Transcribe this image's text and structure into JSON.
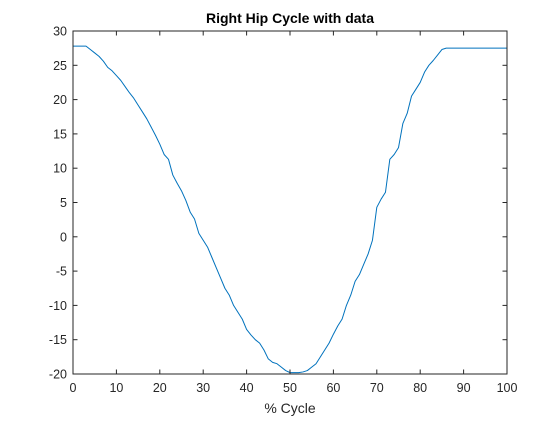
{
  "colors": {
    "series": "#0072BD",
    "axis": "#262626",
    "background": "#ffffff"
  },
  "chart_data": {
    "type": "line",
    "title": "Right Hip Cycle with data",
    "xlabel": "% Cycle",
    "ylabel": "",
    "xlim": [
      0,
      100
    ],
    "ylim": [
      -20,
      30
    ],
    "xticks": [
      0,
      10,
      20,
      30,
      40,
      50,
      60,
      70,
      80,
      90,
      100
    ],
    "yticks": [
      -20,
      -15,
      -10,
      -5,
      0,
      5,
      10,
      15,
      20,
      25,
      30
    ],
    "xtick_labels": [
      "0",
      "10",
      "20",
      "30",
      "40",
      "50",
      "60",
      "70",
      "80",
      "90",
      "100"
    ],
    "ytick_labels": [
      "-20",
      "-15",
      "-10",
      "-5",
      "0",
      "5",
      "10",
      "15",
      "20",
      "25",
      "30"
    ],
    "grid": false,
    "box": true,
    "series": [
      {
        "x": [
          0,
          1,
          2,
          3,
          4,
          5,
          6,
          7,
          8,
          9,
          10,
          11,
          12,
          13,
          14,
          15,
          16,
          17,
          18,
          19,
          20,
          21,
          22,
          23,
          24,
          25,
          26,
          27,
          28,
          29,
          30,
          31,
          32,
          33,
          34,
          35,
          36,
          37,
          38,
          39,
          40,
          41,
          42,
          43,
          44,
          45,
          46,
          47,
          48,
          49,
          50,
          51,
          52,
          53,
          54,
          55,
          56,
          57,
          58,
          59,
          60,
          61,
          62,
          63,
          64,
          65,
          66,
          67,
          68,
          69,
          70,
          71,
          72,
          73,
          74,
          75,
          76,
          77,
          78,
          79,
          80,
          81,
          82,
          83,
          84,
          85,
          86,
          87,
          88,
          89,
          90,
          91,
          92,
          93,
          94,
          95,
          96,
          97,
          98,
          99,
          100
        ],
        "y": [
          27.8,
          27.8,
          27.8,
          27.8,
          27.3,
          26.8,
          26.3,
          25.6,
          24.7,
          24.2,
          23.5,
          22.8,
          21.9,
          21.0,
          20.2,
          19.2,
          18.2,
          17.2,
          16.0,
          14.8,
          13.5,
          12.0,
          11.3,
          9.0,
          7.8,
          6.7,
          5.3,
          3.6,
          2.6,
          0.5,
          -0.5,
          -1.5,
          -3.0,
          -4.5,
          -6.0,
          -7.5,
          -8.5,
          -10.0,
          -11.0,
          -12.0,
          -13.5,
          -14.3,
          -15.0,
          -15.5,
          -16.5,
          -17.8,
          -18.3,
          -18.5,
          -19.0,
          -19.5,
          -19.8,
          -19.8,
          -19.8,
          -19.7,
          -19.5,
          -19.0,
          -18.5,
          -17.5,
          -16.5,
          -15.5,
          -14.2,
          -13.0,
          -12.0,
          -10.0,
          -8.5,
          -6.5,
          -5.5,
          -4.0,
          -2.5,
          -0.5,
          4.3,
          5.5,
          6.5,
          11.3,
          12.0,
          13.0,
          16.5,
          18.0,
          20.5,
          21.5,
          22.5,
          24.0,
          25.0,
          25.7,
          26.5,
          27.3,
          27.5,
          27.5,
          27.5,
          27.5,
          27.5,
          27.5,
          27.5,
          27.5,
          27.5,
          27.5,
          27.5,
          27.5,
          27.5,
          27.5,
          27.5
        ]
      }
    ]
  }
}
